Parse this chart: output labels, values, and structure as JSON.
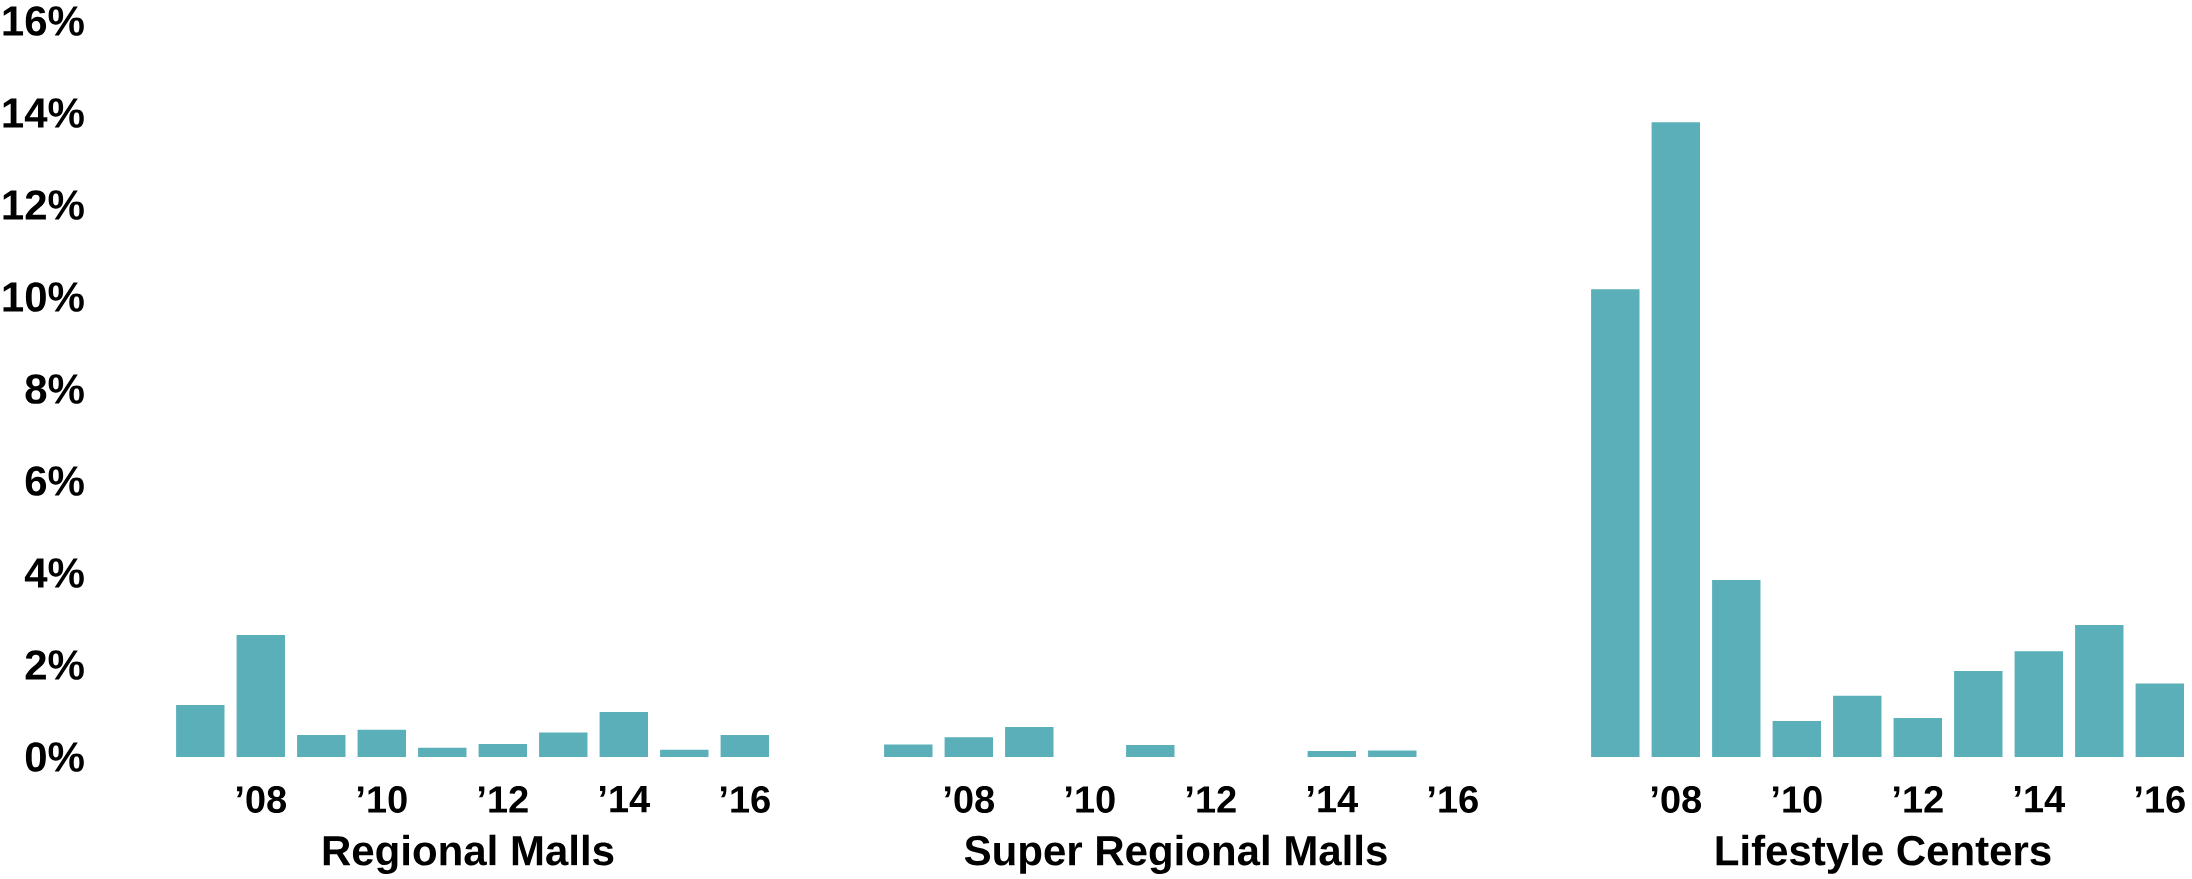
{
  "chart_data": [
    {
      "type": "bar",
      "xlabel": "Regional Malls",
      "color": "#5aafb8",
      "categories": [
        null,
        "’08",
        null,
        "’10",
        null,
        "’12",
        null,
        "’14",
        null,
        "’16"
      ],
      "values": [
        1.13,
        2.65,
        0.48,
        0.59,
        0.2,
        0.28,
        0.53,
        0.98,
        0.16,
        0.48
      ],
      "ylim": [
        0,
        16
      ],
      "yticks": [
        {
          "value": 0,
          "label": "0%"
        },
        {
          "value": 2,
          "label": "2%"
        },
        {
          "value": 4,
          "label": "4%"
        },
        {
          "value": 6,
          "label": "6%"
        },
        {
          "value": 8,
          "label": "8%"
        },
        {
          "value": 10,
          "label": "10%"
        },
        {
          "value": 12,
          "label": "12%"
        },
        {
          "value": 14,
          "label": "14%"
        },
        {
          "value": 16,
          "label": "16%"
        }
      ]
    },
    {
      "type": "bar",
      "xlabel": "Super Regional Malls",
      "color": "#5aafb8",
      "categories": [
        null,
        "’08",
        null,
        "’10",
        null,
        "’12",
        null,
        "’14",
        null,
        "’16"
      ],
      "values": [
        0.27,
        0.43,
        0.65,
        0,
        0.26,
        0,
        0,
        0.13,
        0.14,
        0
      ],
      "ylim": [
        0,
        16
      ],
      "tick_labels": "x"
    },
    {
      "type": "bar",
      "xlabel": "Lifestyle Centers",
      "color": "#5aafb8",
      "categories": [
        null,
        "’08",
        null,
        "’10",
        null,
        "’12",
        null,
        "’14",
        null,
        "’16"
      ],
      "values": [
        10.17,
        13.8,
        3.85,
        0.78,
        1.33,
        0.85,
        1.87,
        2.3,
        2.87,
        1.6
      ],
      "ylim": [
        0,
        16
      ],
      "tick_labels": "x"
    }
  ]
}
